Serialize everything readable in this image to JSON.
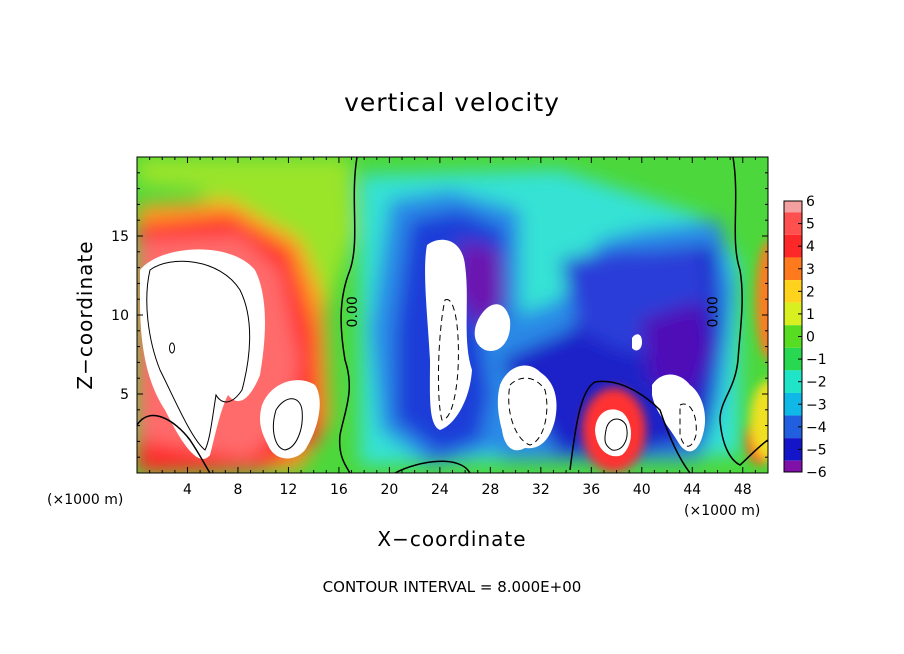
{
  "chart_data": {
    "type": "heatmap",
    "title": "vertical velocity",
    "xlabel": "X−coordinate",
    "ylabel": "Z−coordinate",
    "x_unit_left": "(×1000 m)",
    "x_unit_right": "(×1000 m)",
    "contour_interval": "CONTOUR INTERVAL = 8.000E+00",
    "xlim": [
      0,
      50
    ],
    "ylim": [
      0,
      20
    ],
    "x_ticks": [
      4,
      8,
      12,
      16,
      20,
      24,
      28,
      32,
      36,
      40,
      44,
      48
    ],
    "y_ticks": [
      5,
      10,
      15
    ],
    "colorbar": {
      "min": -6,
      "max": 6,
      "tick_labels": [
        "6",
        "5",
        "4",
        "3",
        "2",
        "1",
        "0",
        "−1",
        "−2",
        "−3",
        "−4",
        "−5",
        "−6"
      ],
      "colors": [
        "#f4a0a0",
        "#ff5050",
        "#ff2828",
        "#ff7a1c",
        "#ffd21e",
        "#d8f020",
        "#56dc20",
        "#28d850",
        "#20e4c8",
        "#10b8e8",
        "#2060e0",
        "#1414c8",
        "#8010a8"
      ]
    },
    "zero_contour_label": "0.00",
    "zero_contour_positions_x": [
      18,
      46
    ],
    "features": [
      {
        "kind": "updraft_core",
        "x": 7,
        "z": 10,
        "value_range": ">6"
      },
      {
        "kind": "updraft_core",
        "x": 12,
        "z": 3,
        "value_range": ">6"
      },
      {
        "kind": "updraft_core",
        "x": 38,
        "z": 3,
        "value_range": ">6"
      },
      {
        "kind": "strong_core",
        "x": 24,
        "z": 10,
        "value_range": "<-6"
      },
      {
        "kind": "strong_core",
        "x": 30,
        "z": 4,
        "value_range": "<-6"
      },
      {
        "kind": "strong_core",
        "x": 42,
        "z": 5,
        "value_range": "<-6"
      }
    ]
  }
}
